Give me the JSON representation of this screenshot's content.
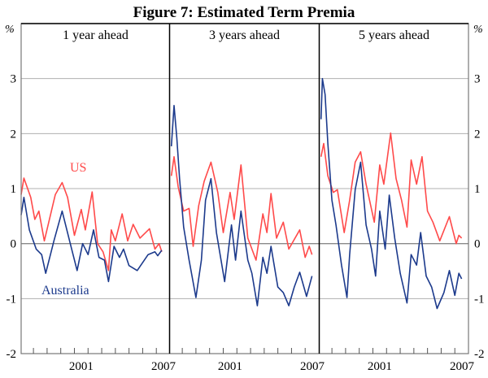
{
  "chart_data": {
    "type": "line",
    "title": "Figure 7: Estimated Term Premia",
    "ylabel": "%",
    "ylim": [
      -2,
      4
    ],
    "yticks": [
      -2,
      -1,
      0,
      1,
      2,
      3
    ],
    "xlim": [
      1997.1,
      2008.0
    ],
    "xtick_labels": [
      "2001",
      "2007"
    ],
    "grid": true,
    "colors": {
      "US": "#ff4a4a",
      "Australia": "#1c3a8c"
    },
    "series_labels": {
      "US": "US",
      "Australia": "Australia"
    },
    "panels": [
      {
        "title": "1 year ahead",
        "series": [
          {
            "name": "US",
            "x": [
              1997.1,
              1997.3,
              1997.8,
              1998.1,
              1998.4,
              1998.8,
              1999.6,
              2000.1,
              2000.5,
              2001.0,
              2001.5,
              2001.8,
              2002.3,
              2002.7,
              2003.1,
              2003.5,
              2003.7,
              2004.0,
              2004.5,
              2004.9,
              2005.3,
              2005.8,
              2006.5,
              2006.9,
              2007.2,
              2007.4
            ],
            "y": [
              0.89,
              1.19,
              0.84,
              0.44,
              0.59,
              0.05,
              0.89,
              1.11,
              0.84,
              0.15,
              0.62,
              0.25,
              0.94,
              0.0,
              -0.15,
              -0.49,
              0.25,
              0.05,
              0.54,
              0.05,
              0.35,
              0.1,
              0.27,
              -0.1,
              0.0,
              -0.15
            ]
          },
          {
            "name": "Australia",
            "x": [
              1997.1,
              1997.3,
              1997.7,
              1998.2,
              1998.6,
              1998.9,
              1999.5,
              2000.1,
              2000.7,
              2001.2,
              2001.6,
              2002.0,
              2002.4,
              2002.8,
              2003.2,
              2003.5,
              2003.9,
              2004.3,
              2004.6,
              2005.0,
              2005.6,
              2006.4,
              2006.9,
              2007.1,
              2007.4
            ],
            "y": [
              0.52,
              0.84,
              0.25,
              -0.1,
              -0.2,
              -0.54,
              0.05,
              0.59,
              0.0,
              -0.49,
              0.0,
              -0.2,
              0.25,
              -0.25,
              -0.3,
              -0.69,
              -0.05,
              -0.25,
              -0.1,
              -0.4,
              -0.49,
              -0.2,
              -0.15,
              -0.22,
              -0.12
            ]
          }
        ]
      },
      {
        "title": "3 years ahead",
        "series": [
          {
            "name": "US",
            "x": [
              1997.2,
              1997.4,
              1997.7,
              1998.1,
              1998.5,
              1998.8,
              1999.2,
              1999.6,
              2000.1,
              2000.6,
              2001.0,
              2001.5,
              2001.8,
              2002.3,
              2002.8,
              2003.4,
              2003.9,
              2004.2,
              2004.5,
              2004.9,
              2005.4,
              2005.8,
              2006.6,
              2007.0,
              2007.3,
              2007.5
            ],
            "y": [
              1.23,
              1.58,
              1.03,
              0.59,
              0.64,
              -0.05,
              0.69,
              1.13,
              1.48,
              0.93,
              0.2,
              0.93,
              0.44,
              1.43,
              0.1,
              -0.3,
              0.54,
              0.2,
              0.91,
              0.1,
              0.39,
              -0.1,
              0.25,
              -0.25,
              -0.05,
              -0.2
            ]
          },
          {
            "name": "Australia",
            "x": [
              1997.2,
              1997.4,
              1997.6,
              1997.8,
              1998.1,
              1998.5,
              1999.0,
              1999.4,
              1999.7,
              2000.1,
              2000.5,
              2001.1,
              2001.6,
              2001.9,
              2002.3,
              2002.8,
              2003.1,
              2003.5,
              2003.9,
              2004.2,
              2004.5,
              2005.0,
              2005.4,
              2005.8,
              2006.2,
              2006.6,
              2007.1,
              2007.5
            ],
            "y": [
              1.77,
              2.51,
              1.92,
              1.18,
              0.3,
              -0.3,
              -0.98,
              -0.3,
              0.79,
              1.18,
              0.2,
              -0.69,
              0.34,
              -0.3,
              0.59,
              -0.3,
              -0.54,
              -1.13,
              -0.25,
              -0.54,
              -0.05,
              -0.79,
              -0.89,
              -1.13,
              -0.79,
              -0.52,
              -0.96,
              -0.59
            ]
          }
        ]
      },
      {
        "title": "5 years ahead",
        "series": [
          {
            "name": "US",
            "x": [
              1997.2,
              1997.4,
              1997.7,
              1998.1,
              1998.4,
              1998.9,
              1999.3,
              1999.7,
              2000.1,
              2000.5,
              2001.1,
              2001.5,
              2001.8,
              2002.3,
              2002.7,
              2003.1,
              2003.5,
              2003.8,
              2004.2,
              2004.6,
              2005.0,
              2005.4,
              2005.9,
              2006.6,
              2007.1,
              2007.3,
              2007.5
            ],
            "y": [
              1.58,
              1.82,
              1.23,
              0.93,
              0.98,
              0.2,
              0.79,
              1.48,
              1.67,
              1.08,
              0.39,
              1.43,
              1.08,
              2.01,
              1.18,
              0.79,
              0.3,
              1.52,
              1.08,
              1.58,
              0.59,
              0.39,
              0.05,
              0.49,
              0.0,
              0.15,
              0.1
            ]
          },
          {
            "name": "Australia",
            "x": [
              1997.2,
              1997.3,
              1997.5,
              1997.7,
              1998.0,
              1998.3,
              1998.7,
              1999.1,
              1999.3,
              1999.7,
              2000.1,
              2000.5,
              2000.9,
              2001.2,
              2001.5,
              2001.9,
              2002.2,
              2002.6,
              2003.0,
              2003.5,
              2003.8,
              2004.2,
              2004.5,
              2004.9,
              2005.3,
              2005.7,
              2006.2,
              2006.6,
              2007.0,
              2007.3,
              2007.5
            ],
            "y": [
              2.26,
              3.0,
              2.71,
              1.82,
              0.79,
              0.34,
              -0.39,
              -0.98,
              -0.2,
              0.98,
              1.48,
              0.34,
              -0.1,
              -0.59,
              0.59,
              -0.1,
              0.88,
              0.1,
              -0.54,
              -1.08,
              -0.2,
              -0.39,
              0.2,
              -0.59,
              -0.79,
              -1.18,
              -0.89,
              -0.49,
              -0.94,
              -0.54,
              -0.64
            ]
          }
        ]
      }
    ]
  }
}
